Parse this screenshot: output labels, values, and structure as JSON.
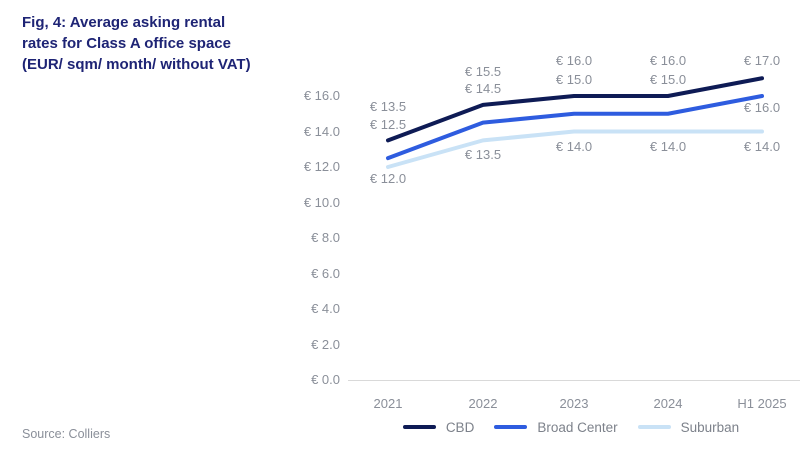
{
  "title": {
    "line1": "Fig, 4: Average asking rental",
    "line2": "rates for Class A office space",
    "line3": "(EUR/ sqm/ month/ without VAT)"
  },
  "source": "Source: Colliers",
  "colors": {
    "title_text": "#1e2475",
    "axis_text": "#8a8f99",
    "axis_line": "#d9d9d9",
    "cbd": "#0e1b55",
    "broad_center": "#2e5cdf",
    "suburban": "#c9e2f6"
  },
  "chart_data": {
    "type": "line",
    "title": "Fig, 4: Average asking rental rates for Class A office space (EUR/ sqm/ month/ without VAT)",
    "categories": [
      "2021",
      "2022",
      "2023",
      "2024",
      "H1 2025"
    ],
    "series": [
      {
        "name": "CBD",
        "color_key": "cbd",
        "values": [
          13.5,
          15.5,
          16.0,
          16.0,
          17.0
        ]
      },
      {
        "name": "Broad Center",
        "color_key": "broad_center",
        "values": [
          12.5,
          14.5,
          15.0,
          15.0,
          16.0
        ]
      },
      {
        "name": "Suburban",
        "color_key": "suburban",
        "values": [
          12.0,
          13.5,
          14.0,
          14.0,
          14.0
        ]
      }
    ],
    "yticks": [
      0.0,
      2.0,
      4.0,
      6.0,
      8.0,
      10.0,
      12.0,
      14.0,
      16.0
    ],
    "ylim": [
      0,
      18
    ],
    "currency_prefix": "€ ",
    "grid": false,
    "legend_position": "bottom",
    "source": "Source: Colliers"
  }
}
